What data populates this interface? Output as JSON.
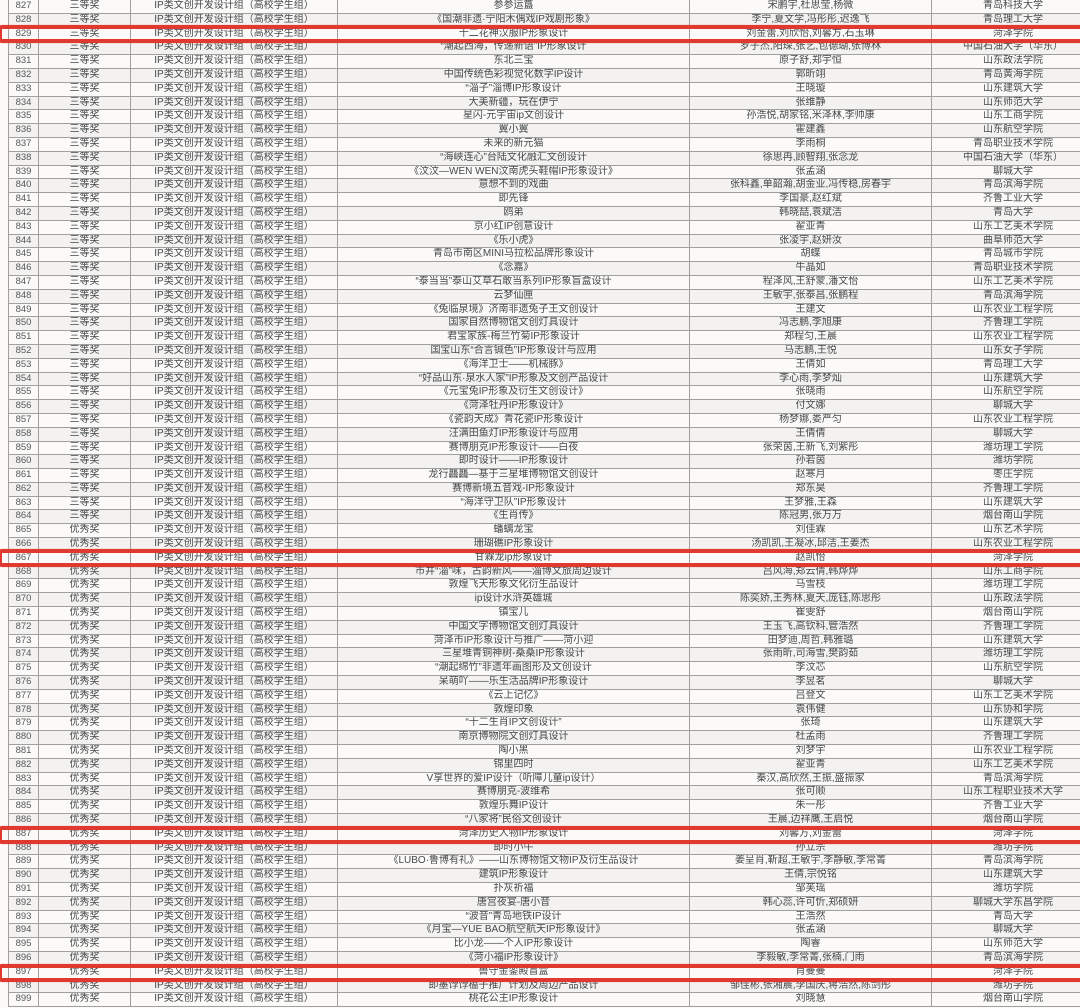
{
  "colors": {
    "highlight_red": "#e03a30",
    "grid_border": "#a0a09e",
    "text": "#45484a"
  },
  "table": {
    "category_all_rows": "IP类文创开发设计组（高校学生组）",
    "award_levels_present": [
      "三等奖",
      "优秀奖"
    ],
    "highlighted_row_numbers": [
      829,
      867,
      887,
      897
    ],
    "rows": [
      {
        "no": "827",
        "award": "三等奖",
        "title": "参参运簋",
        "authors": "宋鹏宇,杜思莹,杨微",
        "school": "青岛科技大学"
      },
      {
        "no": "828",
        "award": "三等奖",
        "title": "《国潮非遗·宁阳木偶戏IP戏剧形象》",
        "authors": "李宁,夏文学,冯彤彤,迟逸飞",
        "school": "青岛理工大学"
      },
      {
        "no": "829",
        "award": "三等奖",
        "title": "十二花神汉服IP形象设计",
        "authors": "刘金蕾,刘欣怡,刘馨方,石玉琳",
        "school": "菏泽学院"
      },
      {
        "no": "830",
        "award": "三等奖",
        "title": "“潮起西海，传递新语”IP形象设计",
        "authors": "罗子杰,阳琛,张艺,包德瑚,张博林",
        "school": "中国石油大学（华东）"
      },
      {
        "no": "831",
        "award": "三等奖",
        "title": "东北三宝",
        "authors": "原子舒,郑宇恒",
        "school": "山东政法学院"
      },
      {
        "no": "832",
        "award": "三等奖",
        "title": "中国传统色彩视觉化数字IP设计",
        "authors": "郭昕翊",
        "school": "青岛黄海学院"
      },
      {
        "no": "833",
        "award": "三等奖",
        "title": "“淄子”淄博IP形象设计",
        "authors": "王晓璇",
        "school": "山东建筑大学"
      },
      {
        "no": "834",
        "award": "三等奖",
        "title": "大美新疆，玩在伊宁",
        "authors": "张维静",
        "school": "山东师范大学"
      },
      {
        "no": "835",
        "award": "三等奖",
        "title": "星闪-元宇宙ip文创设计",
        "authors": "孙浩悦,胡家铭,米泽林,李帅康",
        "school": "山东工商学院"
      },
      {
        "no": "836",
        "award": "三等奖",
        "title": "翼小翼",
        "authors": "霍建鑫",
        "school": "山东航空学院"
      },
      {
        "no": "837",
        "award": "三等奖",
        "title": "未来的新元猫",
        "authors": "李雨桐",
        "school": "青岛职业技术学院"
      },
      {
        "no": "838",
        "award": "三等奖",
        "title": "“海峡连心”台陆文化融汇文创设计",
        "authors": "徐思冉,顾智翔,张念龙",
        "school": "中国石油大学（华东）"
      },
      {
        "no": "839",
        "award": "三等奖",
        "title": "《汶汶—WEN WEN汶南虎头鞋帽IP形象设计》",
        "authors": "张孟涵",
        "school": "聊城大学"
      },
      {
        "no": "840",
        "award": "三等奖",
        "title": "意想不到的戏曲",
        "authors": "张科鑫,单韶瀚,胡金业,冯传稳,房春宇",
        "school": "青岛滨海学院"
      },
      {
        "no": "841",
        "award": "三等奖",
        "title": "即先锋",
        "authors": "李国豪,赵红斌",
        "school": "齐鲁工业大学"
      },
      {
        "no": "842",
        "award": "三等奖",
        "title": "鸥弟",
        "authors": "韩晓喆,袁斌洁",
        "school": "青岛大学"
      },
      {
        "no": "843",
        "award": "三等奖",
        "title": "京小红IP创意设计",
        "authors": "翟亚青",
        "school": "山东工艺美术学院"
      },
      {
        "no": "844",
        "award": "三等奖",
        "title": "《乐小虎》",
        "authors": "张凌宇,赵妍汝",
        "school": "曲阜师范大学"
      },
      {
        "no": "845",
        "award": "三等奖",
        "title": "青岛市南区MINI马拉松品牌形象设计",
        "authors": "胡蝶",
        "school": "青岛城市学院"
      },
      {
        "no": "846",
        "award": "三等奖",
        "title": "《念嘉》",
        "authors": "牛晶如",
        "school": "青岛职业技术学院"
      },
      {
        "no": "847",
        "award": "三等奖",
        "title": "“泰当当”泰山艾草石敢当系列IP形象盲盒设计",
        "authors": "程泽风,王舒蒙,潘文怡",
        "school": "山东工艺美术学院"
      },
      {
        "no": "848",
        "award": "三等奖",
        "title": "云梦仙匣",
        "authors": "王敏宇,张泰昌,张鹏程",
        "school": "青岛滨海学院"
      },
      {
        "no": "849",
        "award": "三等奖",
        "title": "《兔临泉境》济南非遗兔子王文创设计",
        "authors": "王建文",
        "school": "山东农业工程学院"
      },
      {
        "no": "850",
        "award": "三等奖",
        "title": "国家自然博物馆文创灯具设计",
        "authors": "冯志鹏,李旭康",
        "school": "齐鲁理工学院"
      },
      {
        "no": "851",
        "award": "三等奖",
        "title": "君宝家族-梅兰竹菊IP形象设计",
        "authors": "郑程匀,王晨",
        "school": "山东农业工程学院"
      },
      {
        "no": "852",
        "award": "三等奖",
        "title": "国宝山东“合言铖色”IP形象设计与应用",
        "authors": "马志鹏,王悦",
        "school": "山东女子学院"
      },
      {
        "no": "853",
        "award": "三等奖",
        "title": "《海洋卫士——机械豚》",
        "authors": "王倩如",
        "school": "青岛理工大学"
      },
      {
        "no": "854",
        "award": "三等奖",
        "title": "“好品山东·泉水人家”IP形象及文创产品设计",
        "authors": "李心雨,李梦灿",
        "school": "山东建筑大学"
      },
      {
        "no": "855",
        "award": "三等奖",
        "title": "《元宝兔IP形象及衍生文创设计》",
        "authors": "张晓雨",
        "school": "山东航空学院"
      },
      {
        "no": "856",
        "award": "三等奖",
        "title": "《菏泽牡丹IP形象设计》",
        "authors": "付文娜",
        "school": "聊城大学"
      },
      {
        "no": "857",
        "award": "三等奖",
        "title": "《瓷韵天成》青花瓷IP形象设计",
        "authors": "杨梦娜,娄严匀",
        "school": "山东农业工程学院"
      },
      {
        "no": "858",
        "award": "三等奖",
        "title": "汪满田鱼灯IP形象设计与应用",
        "authors": "王倩倩",
        "school": "聊城大学"
      },
      {
        "no": "859",
        "award": "三等奖",
        "title": "赛博朋克IP形象设计——白夜",
        "authors": "张荣茵,王新飞,刘紫彤",
        "school": "潍坊理工学院"
      },
      {
        "no": "860",
        "award": "三等奖",
        "title": "即时设计——IP形象设计",
        "authors": "孙若茵",
        "school": "潍坊学院"
      },
      {
        "no": "861",
        "award": "三等奖",
        "title": "龙行龘龘—基于三星堆博物馆文创设计",
        "authors": "赵寒月",
        "school": "枣庄学院"
      },
      {
        "no": "862",
        "award": "三等奖",
        "title": "赛博新境五音戏-IP形象设计",
        "authors": "郑东昊",
        "school": "齐鲁理工学院"
      },
      {
        "no": "863",
        "award": "三等奖",
        "title": "“海洋守卫队”IP形象设计",
        "authors": "王梦雅,王森",
        "school": "山东建筑大学"
      },
      {
        "no": "864",
        "award": "三等奖",
        "title": "《生肖传》",
        "authors": "陈冠男,张万万",
        "school": "烟台南山学院"
      },
      {
        "no": "865",
        "award": "优秀奖",
        "title": "蟠螭龙宝",
        "authors": "刘佳霖",
        "school": "山东艺术学院"
      },
      {
        "no": "866",
        "award": "优秀奖",
        "title": "珊瑚礁IP形象设计",
        "authors": "汤凯凯,王凝冰,邱洁,王姜杰",
        "school": "山东农业工程学院"
      },
      {
        "no": "867",
        "award": "优秀奖",
        "title": "甘霖龙ip形象设计",
        "authors": "赵凯怡",
        "school": "菏泽学院"
      },
      {
        "no": "868",
        "award": "优秀奖",
        "title": "市井“淄”味，古韵新风——淄博文旅周边设计",
        "authors": "吕风海,郑云倩,韩烨烨",
        "school": "山东工商学院"
      },
      {
        "no": "869",
        "award": "优秀奖",
        "title": "敦煌飞天形象文化衍生品设计",
        "authors": "马雪枝",
        "school": "潍坊理工学院"
      },
      {
        "no": "870",
        "award": "优秀奖",
        "title": "ip设计水浒英雄城",
        "authors": "陈奕娇,王秀林,夏天,庞钰,陈思彤",
        "school": "山东政法学院"
      },
      {
        "no": "871",
        "award": "优秀奖",
        "title": "镇宝儿",
        "authors": "崔雯舒",
        "school": "烟台南山学院"
      },
      {
        "no": "872",
        "award": "优秀奖",
        "title": "中国文字博物馆文创灯具设计",
        "authors": "王玉飞,高钦科,管浩然",
        "school": "齐鲁理工学院"
      },
      {
        "no": "873",
        "award": "优秀奖",
        "title": "菏泽市IP形象设计与推广——菏小迎",
        "authors": "田梦迪,周哲,韩雅璐",
        "school": "山东建筑大学"
      },
      {
        "no": "874",
        "award": "优秀奖",
        "title": "三星堆青铜神树-桑桑IP形象设计",
        "authors": "张雨昕,司海雪,樊韵茹",
        "school": "潍坊理工学院"
      },
      {
        "no": "875",
        "award": "优秀奖",
        "title": "“潮起绵竹”非遗年画图形及文创设计",
        "authors": "李汶芯",
        "school": "山东航空学院"
      },
      {
        "no": "876",
        "award": "优秀奖",
        "title": "呆萌吖——乐生活品牌IP形象设计",
        "authors": "李昱茗",
        "school": "聊城大学"
      },
      {
        "no": "877",
        "award": "优秀奖",
        "title": "《云上记忆》",
        "authors": "吕登文",
        "school": "山东工艺美术学院"
      },
      {
        "no": "878",
        "award": "优秀奖",
        "title": "敦煌印象",
        "authors": "袁伟健",
        "school": "山东协和学院"
      },
      {
        "no": "879",
        "award": "优秀奖",
        "title": "“十二生肖IP文创设计”",
        "authors": "张琦",
        "school": "山东建筑大学"
      },
      {
        "no": "880",
        "award": "优秀奖",
        "title": "南京博物院文创灯具设计",
        "authors": "杜孟雨",
        "school": "齐鲁理工学院"
      },
      {
        "no": "881",
        "award": "优秀奖",
        "title": "陶小黑",
        "authors": "刘梦宇",
        "school": "山东农业工程学院"
      },
      {
        "no": "882",
        "award": "优秀奖",
        "title": "锦里四时",
        "authors": "翟亚青",
        "school": "山东工艺美术学院"
      },
      {
        "no": "883",
        "award": "优秀奖",
        "title": "V享世界的爱IP设计（听障儿童ip设计）",
        "authors": "秦汉,高欣然,王振,盛振家",
        "school": "青岛滨海学院"
      },
      {
        "no": "884",
        "award": "优秀奖",
        "title": "赛博朋克-波维希",
        "authors": "张可顺",
        "school": "山东工程职业技术大学"
      },
      {
        "no": "885",
        "award": "优秀奖",
        "title": "敦煌乐舞IP设计",
        "authors": "朱一彤",
        "school": "齐鲁工业大学"
      },
      {
        "no": "886",
        "award": "优秀奖",
        "title": "“八家将”民俗文创设计",
        "authors": "王晨,边祥鹰,王启悦",
        "school": "烟台南山学院"
      },
      {
        "no": "887",
        "award": "优秀奖",
        "title": "菏泽历史人物IP形象设计",
        "authors": "刘馨方,刘金蕾",
        "school": "菏泽学院"
      },
      {
        "no": "888",
        "award": "优秀奖",
        "title": "即时小牛",
        "authors": "孙立宗",
        "school": "潍坊学院"
      },
      {
        "no": "889",
        "award": "优秀奖",
        "title": "《LUBO·鲁博有礼》——山东博物馆文物IP及衍生品设计",
        "authors": "姜呈肖,靳超,王敏宇,李静敏,李常菁",
        "school": "青岛滨海学院"
      },
      {
        "no": "890",
        "award": "优秀奖",
        "title": "建筑IP形象设计",
        "authors": "王倩,宗悦铭",
        "school": "山东建筑大学"
      },
      {
        "no": "891",
        "award": "优秀奖",
        "title": "扑灰祈福",
        "authors": "邹芙瑶",
        "school": "潍坊学院"
      },
      {
        "no": "892",
        "award": "优秀奖",
        "title": "唐宫夜宴-唐小音",
        "authors": "韩心蕊,许可忻,郑硕妍",
        "school": "聊城大学东昌学院"
      },
      {
        "no": "893",
        "award": "优秀奖",
        "title": "“波音”青岛地铁IP设计",
        "authors": "王浩然",
        "school": "青岛大学"
      },
      {
        "no": "894",
        "award": "优秀奖",
        "title": "《月宝—YUE BAO航空航天IP形象设计》",
        "authors": "张孟涵",
        "school": "聊城大学"
      },
      {
        "no": "895",
        "award": "优秀奖",
        "title": "比小龙——个人IP形象设计",
        "authors": "陶睿",
        "school": "山东师范大学"
      },
      {
        "no": "896",
        "award": "优秀奖",
        "title": "《菏小福IP形象设计》",
        "authors": "李毅敏,李常菁,张楠,门雨",
        "school": "青岛滨海学院"
      },
      {
        "no": "897",
        "award": "优秀奖",
        "title": "兽守金銮殿盲盒",
        "authors": "肖曼曼",
        "school": "菏泽学院"
      },
      {
        "no": "898",
        "award": "优秀奖",
        "title": "即墨饽饽榼子推广计划及周边产品设计",
        "authors": "邹佳彬,张湘晨,李国庆,蒋浩然,陈剑彤",
        "school": "潍坊学院"
      },
      {
        "no": "899",
        "award": "优秀奖",
        "title": "桃花公主IP形象设计",
        "authors": "刘晓慧",
        "school": "烟台南山学院"
      }
    ]
  }
}
